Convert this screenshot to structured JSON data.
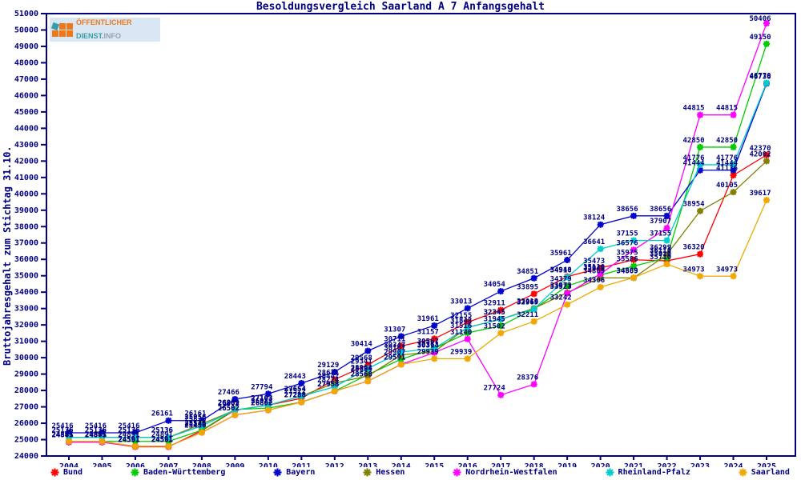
{
  "header": {
    "title": "Besoldungsvergleich Saarland A 7 Anfangsgehalt"
  },
  "logo": {
    "line1": "ÖFFENTLICHER",
    "line2_a": "DIENST.",
    "line2_b": "INFO"
  },
  "colors": {
    "axis": "#000080",
    "background": "#ffffff",
    "label": "#000080"
  },
  "chart_data": {
    "type": "line",
    "title": "Besoldungsvergleich Saarland A 7 Anfangsgehalt",
    "xlabel": "",
    "ylabel": "Bruttojahresgehalt zum Stichtag 31.10.",
    "ylim": [
      24000,
      51000
    ],
    "y_tick_step": 1000,
    "grid": false,
    "point_labels": true,
    "legend_position": "bottom",
    "x": [
      2004,
      2005,
      2006,
      2007,
      2008,
      2009,
      2010,
      2011,
      2012,
      2013,
      2014,
      2015,
      2016,
      2017,
      2018,
      2019,
      2020,
      2021,
      2022,
      2023,
      2024,
      2025
    ],
    "series": [
      {
        "name": "Bund",
        "color": "#ff0000",
        "values": [
          24845,
          24845,
          24561,
          24561,
          25546,
          26802,
          27103,
          27522,
          28671,
          29568,
          30711,
          31157,
          32155,
          32911,
          33895,
          34948,
          35473,
          35975,
          35910,
          36320,
          41136,
          42370
        ]
      },
      {
        "name": "Baden-Württemberg",
        "color": "#00cc00",
        "values": [
          24891,
          24891,
          24891,
          24891,
          25576,
          26839,
          26922,
          27288,
          27958,
          28964,
          29907,
          30567,
          31516,
          31945,
          32969,
          34379,
          35048,
          35586,
          36110,
          42850,
          42850,
          49150
        ]
      },
      {
        "name": "Bayern",
        "color": "#0000cc",
        "values": [
          25416,
          25416,
          25416,
          26161,
          26161,
          27466,
          27794,
          28443,
          29129,
          30414,
          31307,
          31961,
          33013,
          34054,
          34851,
          35961,
          38124,
          38656,
          38656,
          41444,
          41444,
          46736
        ]
      },
      {
        "name": "Hessen",
        "color": "#808000",
        "values": [
          25136,
          25136,
          25136,
          25136,
          25956,
          26802,
          27103,
          27654,
          28447,
          28884,
          30167,
          30363,
          31848,
          32345,
          33013,
          33973,
          34869,
          34869,
          36299,
          38954,
          40105,
          42002
        ]
      },
      {
        "name": "Nordrhein-Westfalen",
        "color": "#ff00ff",
        "values": [
          24845,
          24845,
          24591,
          24591,
          25436,
          26502,
          26802,
          27288,
          27958,
          28568,
          29591,
          30314,
          31140,
          27724,
          28376,
          33923,
          35110,
          36576,
          37907,
          44815,
          44815,
          50406
        ]
      },
      {
        "name": "Rheinland-Pfalz",
        "color": "#00cccc",
        "values": [
          25136,
          25136,
          25136,
          25136,
          25836,
          26802,
          27103,
          27654,
          28224,
          29341,
          30347,
          30567,
          31848,
          32345,
          32969,
          34910,
          36641,
          37155,
          37155,
          41776,
          41776,
          46770
        ]
      },
      {
        "name": "Saarland",
        "color": "#f0a800",
        "values": [
          24891,
          24891,
          24591,
          24591,
          25436,
          26502,
          26802,
          27288,
          27958,
          28568,
          29591,
          29939,
          29939,
          31502,
          32211,
          33242,
          34306,
          34889,
          35710,
          34973,
          34973,
          39617
        ]
      }
    ]
  }
}
